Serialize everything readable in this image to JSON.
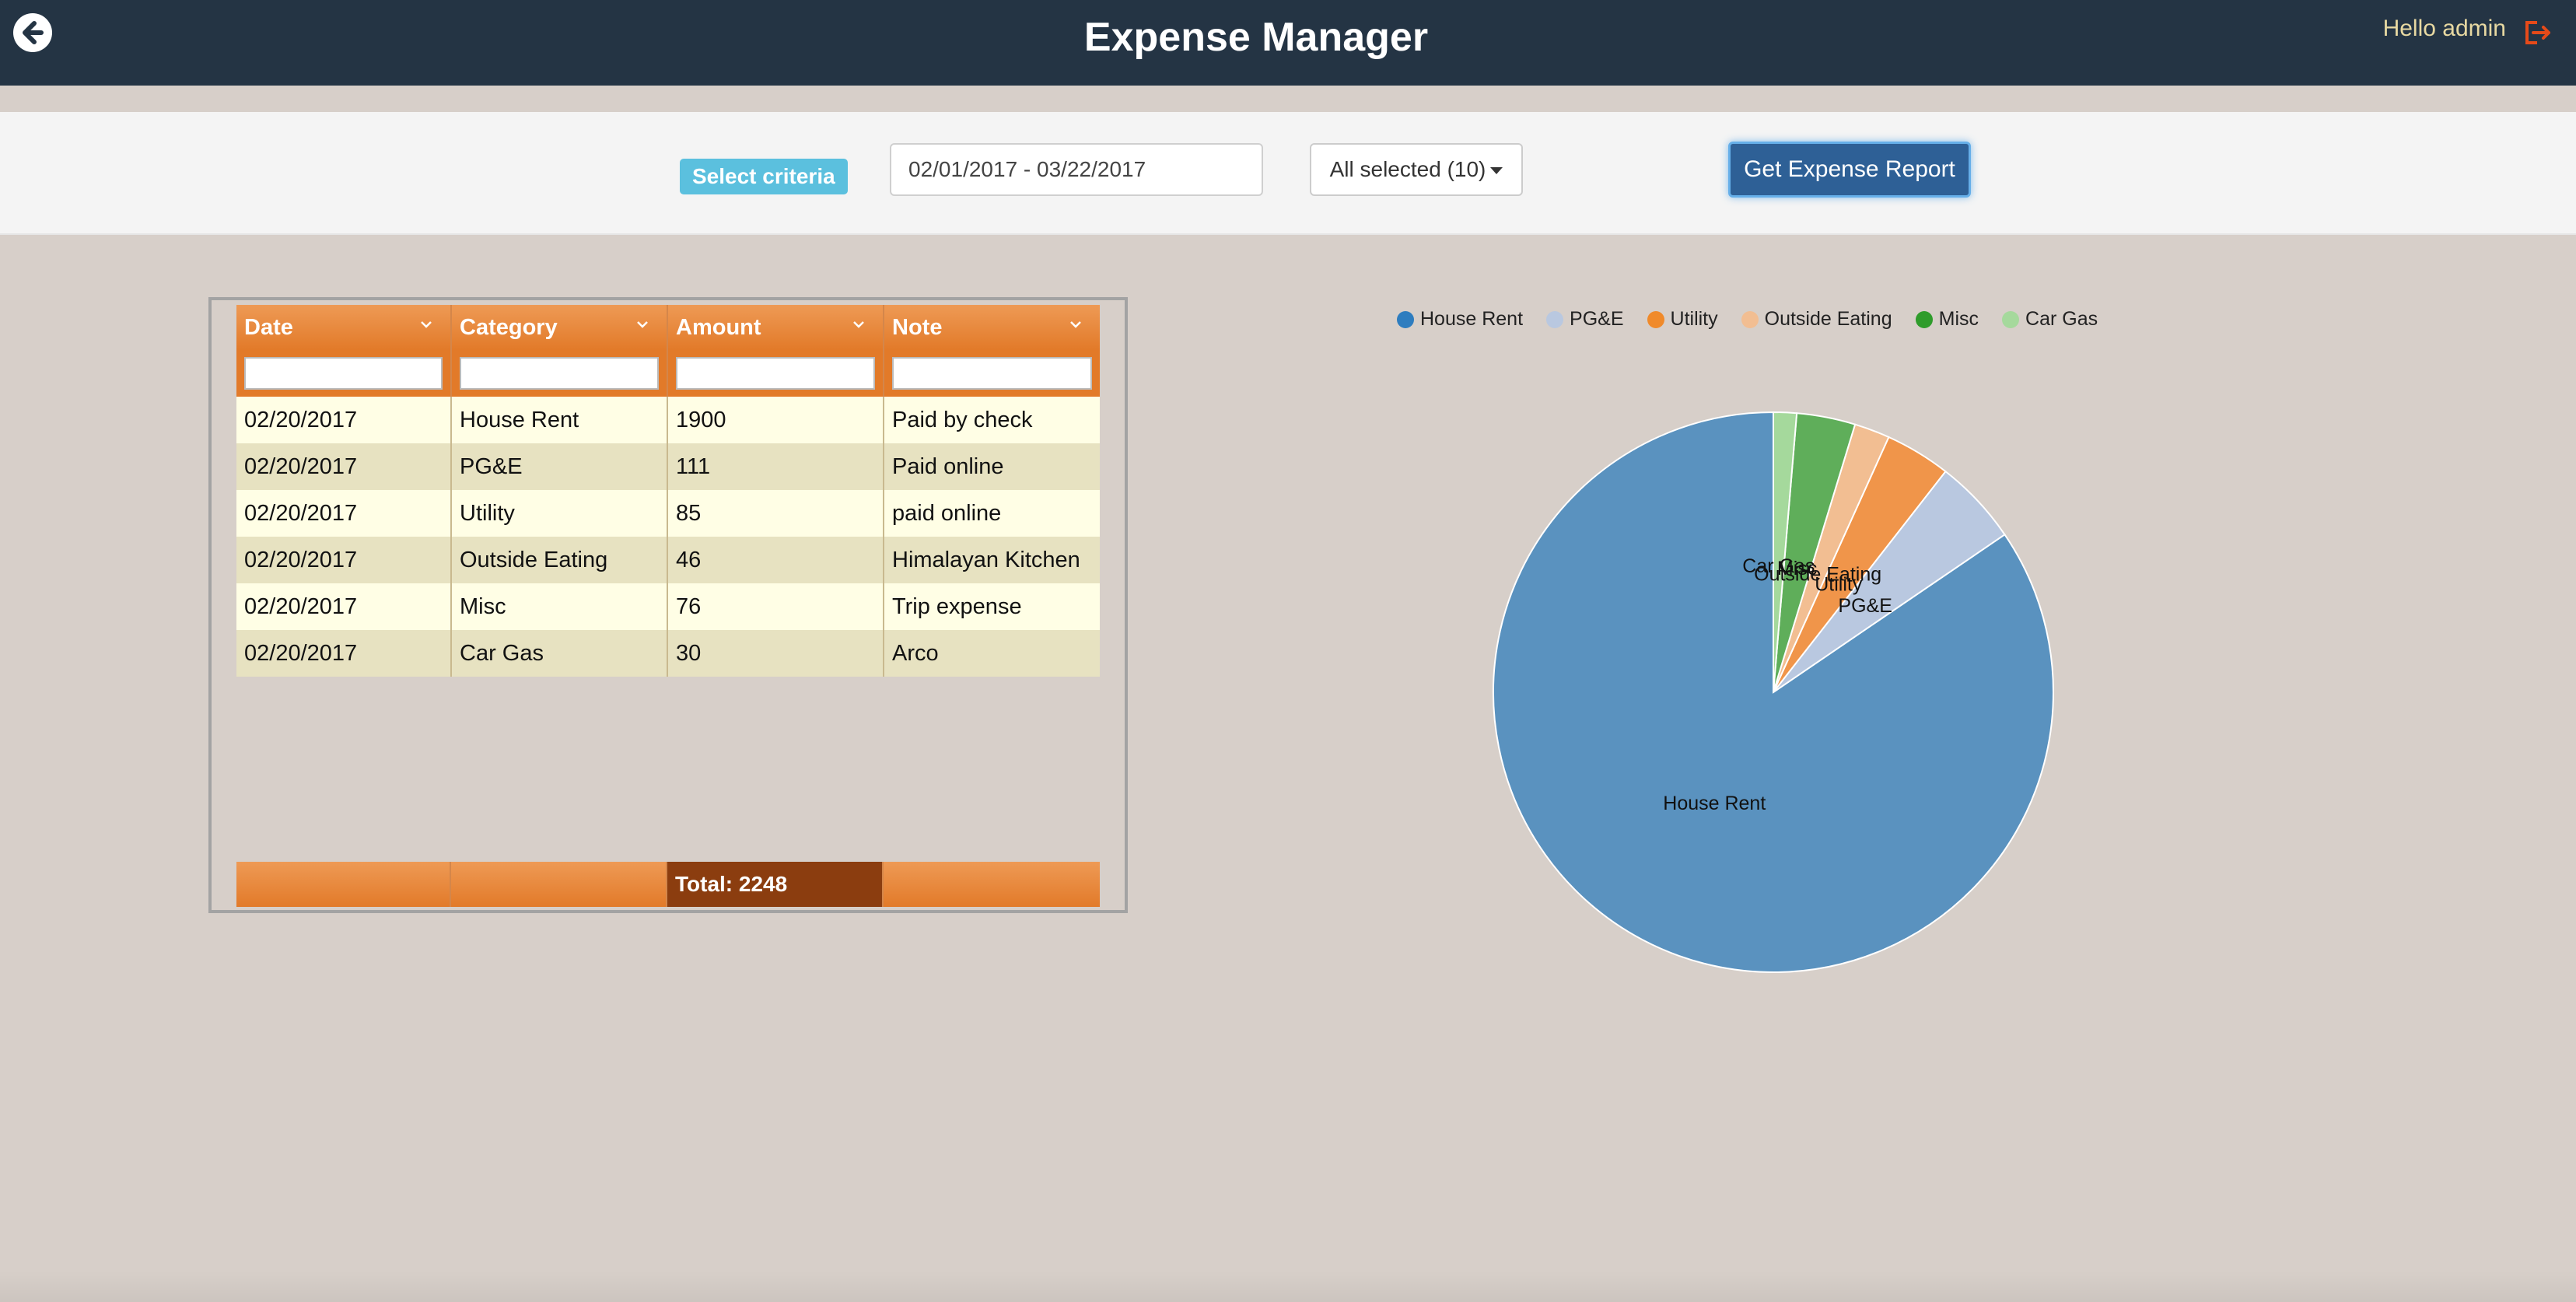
{
  "header": {
    "title": "Expense Manager",
    "greeting": "Hello admin",
    "back_icon": "back-arrow-icon",
    "logout_icon": "logout-icon"
  },
  "criteria": {
    "label": "Select criteria",
    "date_range": "02/01/2017 - 03/22/2017",
    "category_select": "All selected (10)",
    "report_button": "Get Expense Report"
  },
  "grid": {
    "columns": [
      "Date",
      "Category",
      "Amount",
      "Note"
    ],
    "rows": [
      [
        "02/20/2017",
        "House Rent",
        "1900",
        "Paid by check"
      ],
      [
        "02/20/2017",
        "PG&E",
        "111",
        "Paid online"
      ],
      [
        "02/20/2017",
        "Utility",
        "85",
        "paid online"
      ],
      [
        "02/20/2017",
        "Outside Eating",
        "46",
        "Himalayan Kitchen"
      ],
      [
        "02/20/2017",
        "Misc",
        "76",
        "Trip expense"
      ],
      [
        "02/20/2017",
        "Car Gas",
        "30",
        "Arco"
      ]
    ],
    "total": "Total: 2248"
  },
  "colors": {
    "topbar": "#243444",
    "accent_orange": "#e27a29",
    "primary_button": "#2e6096",
    "criteria_label": "#5bc0de"
  },
  "chart_data": {
    "type": "pie",
    "categories": [
      "House Rent",
      "PG&E",
      "Utility",
      "Outside Eating",
      "Misc",
      "Car Gas"
    ],
    "values": [
      1900,
      111,
      85,
      46,
      76,
      30
    ],
    "colors": [
      "#5a92bf",
      "#b9c8e0",
      "#f0954a",
      "#f2be92",
      "#5fae5a",
      "#a5d99c"
    ],
    "legend_position": "top"
  }
}
